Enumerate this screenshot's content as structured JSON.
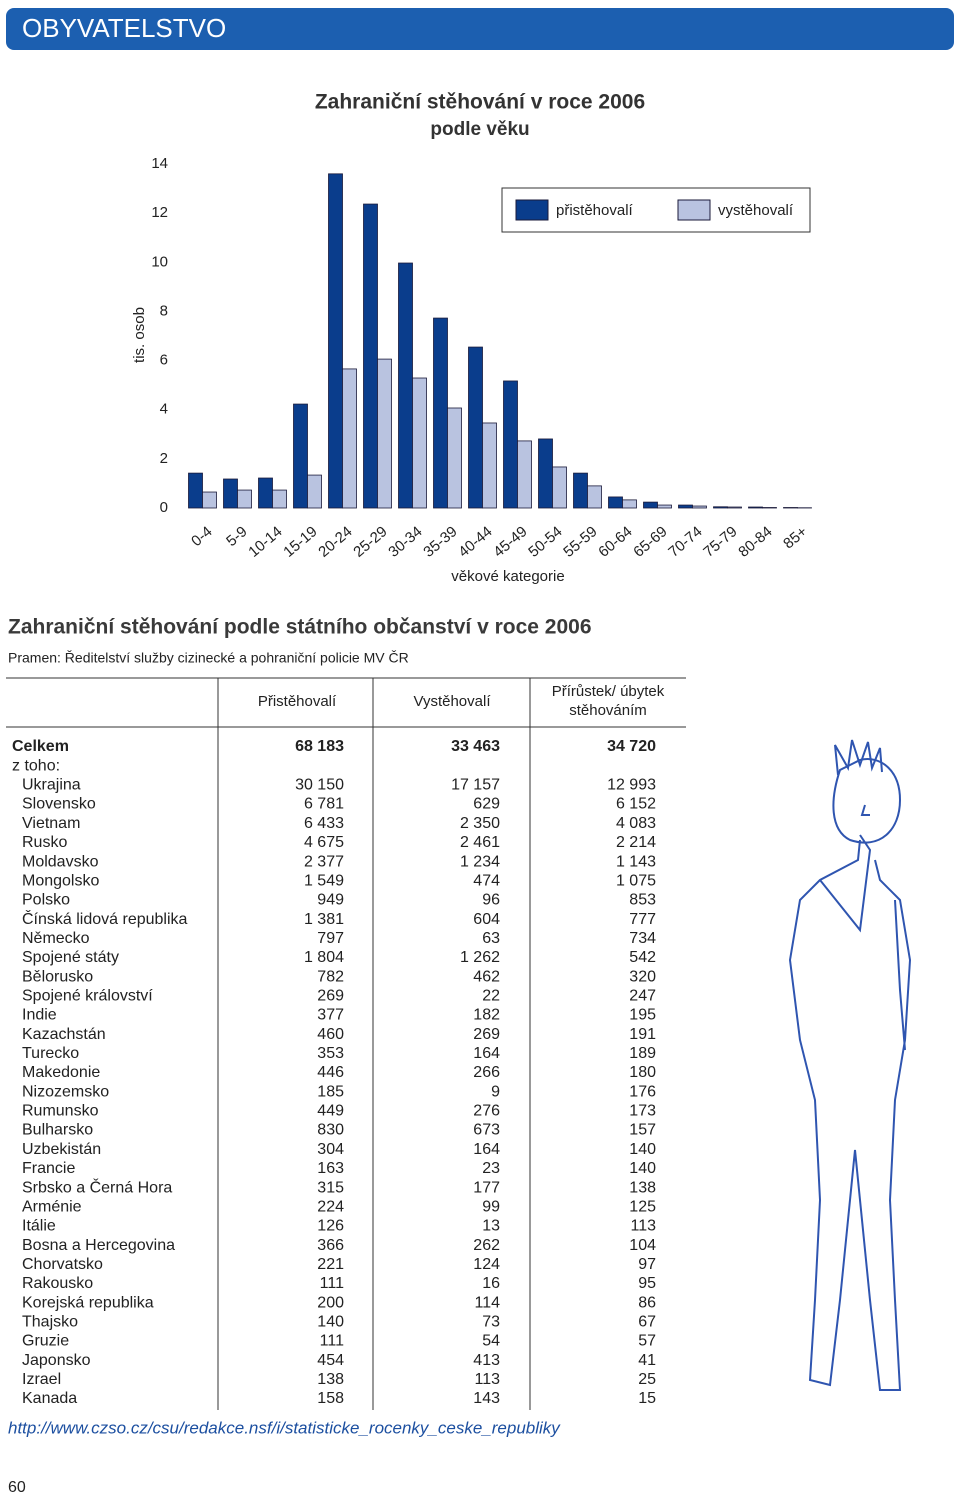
{
  "header": {
    "title": "OBYVATELSTVO"
  },
  "chart_data": {
    "type": "bar",
    "title": "Zahraniční stěhování v roce 2006",
    "subtitle": "podle věku",
    "y_label": "tis. osob",
    "x_label": "věkové kategorie",
    "categories": [
      "0-4",
      "5-9",
      "10-14",
      "15-19",
      "20-24",
      "25-29",
      "30-34",
      "35-39",
      "40-44",
      "45-49",
      "50-54",
      "55-59",
      "60-64",
      "65-69",
      "70-74",
      "75-79",
      "80-84",
      "85+"
    ],
    "series": [
      {
        "name": "přistěhovalí",
        "color": "#0a3d8c",
        "values": [
          1.42,
          1.18,
          1.22,
          4.23,
          13.6,
          12.37,
          9.97,
          7.73,
          6.55,
          5.17,
          2.81,
          1.42,
          0.45,
          0.24,
          0.12,
          0.05,
          0.04,
          0.02
        ]
      },
      {
        "name": "vystěhovalí",
        "color": "#b9c3e0",
        "values": [
          0.65,
          0.73,
          0.73,
          1.34,
          5.66,
          6.06,
          5.29,
          4.07,
          3.46,
          2.73,
          1.67,
          0.9,
          0.33,
          0.12,
          0.08,
          0.04,
          0.02,
          0.01
        ]
      }
    ],
    "ylim": [
      0,
      14
    ],
    "yticks": [
      0,
      2,
      4,
      6,
      8,
      10,
      12,
      14
    ],
    "legend": "top-right"
  },
  "table": {
    "title": "Zahraniční stěhování podle státního občanství v roce 2006",
    "source": "Pramen: Ředitelství služby cizinecké a pohraniční policie MV ČR",
    "header": [
      "Přistěhovalí",
      "Vystěhovalí",
      "Přírůstek/ úbytek",
      "stěhováním"
    ],
    "rows": [
      {
        "label": "Celkem",
        "values": [
          "68 183",
          "33 463",
          "34 720"
        ]
      },
      {
        "label": "z toho:"
      },
      {
        "label": "Ukrajina",
        "values": [
          "30 150",
          "17 157",
          "12 993"
        ]
      },
      {
        "label": "Slovensko",
        "values": [
          "6 781",
          "629",
          "6 152"
        ]
      },
      {
        "label": "Vietnam",
        "values": [
          "6 433",
          "2 350",
          "4 083"
        ]
      },
      {
        "label": "Rusko",
        "values": [
          "4 675",
          "2 461",
          "2 214"
        ]
      },
      {
        "label": "Moldavsko",
        "values": [
          "2 377",
          "1 234",
          "1 143"
        ]
      },
      {
        "label": "Mongolsko",
        "values": [
          "1 549",
          "474",
          "1 075"
        ]
      },
      {
        "label": "Polsko",
        "values": [
          "949",
          "96",
          "853"
        ]
      },
      {
        "label": "Čínská lidová republika",
        "values": [
          "1 381",
          "604",
          "777"
        ]
      },
      {
        "label": "Německo",
        "values": [
          "797",
          "63",
          "734"
        ]
      },
      {
        "label": "Spojené státy",
        "values": [
          "1 804",
          "1 262",
          "542"
        ]
      },
      {
        "label": "Bělorusko",
        "values": [
          "782",
          "462",
          "320"
        ]
      },
      {
        "label": "Spojené království",
        "values": [
          "269",
          "22",
          "247"
        ]
      },
      {
        "label": "Indie",
        "values": [
          "377",
          "182",
          "195"
        ]
      },
      {
        "label": "Kazachstán",
        "values": [
          "460",
          "269",
          "191"
        ]
      },
      {
        "label": "Turecko",
        "values": [
          "353",
          "164",
          "189"
        ]
      },
      {
        "label": "Makedonie",
        "values": [
          "446",
          "266",
          "180"
        ]
      },
      {
        "label": "Nizozemsko",
        "values": [
          "185",
          "9",
          "176"
        ]
      },
      {
        "label": "Rumunsko",
        "values": [
          "449",
          "276",
          "173"
        ]
      },
      {
        "label": "Bulharsko",
        "values": [
          "830",
          "673",
          "157"
        ]
      },
      {
        "label": "Uzbekistán",
        "values": [
          "304",
          "164",
          "140"
        ]
      },
      {
        "label": "Francie",
        "values": [
          "163",
          "23",
          "140"
        ]
      },
      {
        "label": "Srbsko a Černá Hora",
        "values": [
          "315",
          "177",
          "138"
        ]
      },
      {
        "label": "Arménie",
        "values": [
          "224",
          "99",
          "125"
        ]
      },
      {
        "label": "Itálie",
        "values": [
          "126",
          "13",
          "113"
        ]
      },
      {
        "label": "Bosna a Hercegovina",
        "values": [
          "366",
          "262",
          "104"
        ]
      },
      {
        "label": "Chorvatsko",
        "values": [
          "221",
          "124",
          "97"
        ]
      },
      {
        "label": "Rakousko",
        "values": [
          "111",
          "16",
          "95"
        ]
      },
      {
        "label": "Korejská republika",
        "values": [
          "200",
          "114",
          "86"
        ]
      },
      {
        "label": "Thajsko",
        "values": [
          "140",
          "73",
          "67"
        ]
      },
      {
        "label": "Gruzie",
        "values": [
          "111",
          "54",
          "57"
        ]
      },
      {
        "label": "Japonsko",
        "values": [
          "454",
          "413",
          "41"
        ]
      },
      {
        "label": "Izrael",
        "values": [
          "138",
          "113",
          "25"
        ]
      },
      {
        "label": "Kanada",
        "values": [
          "158",
          "143",
          "15"
        ]
      }
    ]
  },
  "url": "http://www.czso.cz/csu/redakce.nsf/i/statisticke_rocenky_ceske_republiky",
  "page_number": "60"
}
